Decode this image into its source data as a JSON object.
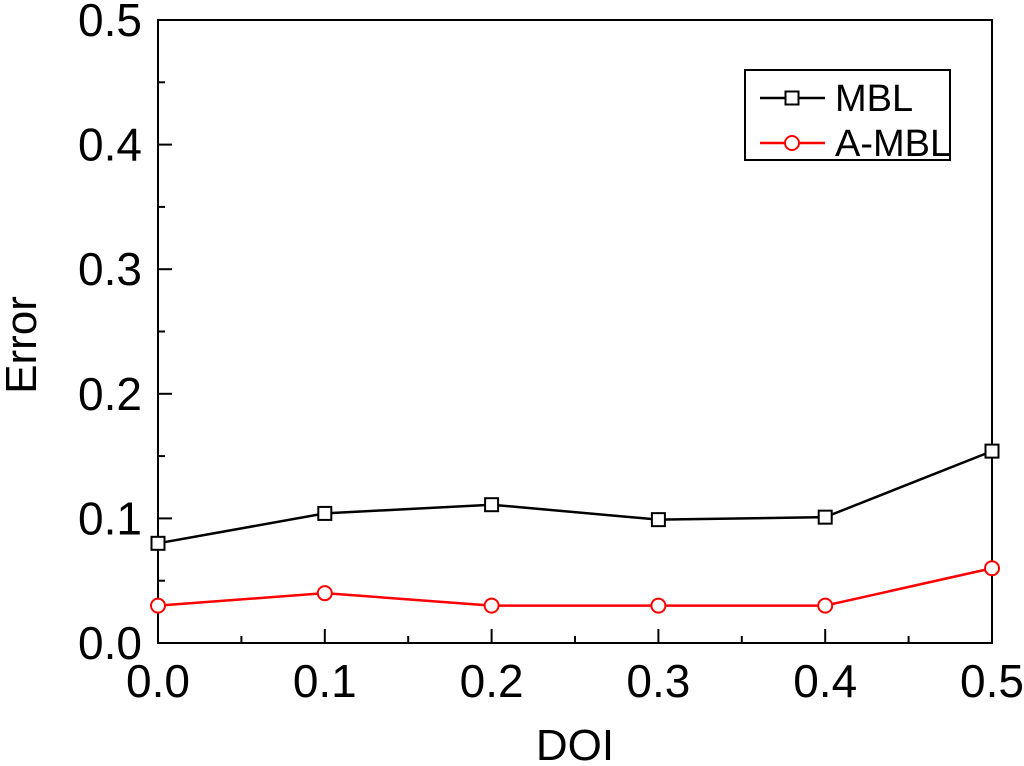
{
  "chart_data": {
    "type": "line",
    "title": "",
    "xlabel": "DOI",
    "ylabel": "Error",
    "xlim": [
      0.0,
      0.5
    ],
    "ylim": [
      0.0,
      0.5
    ],
    "x": [
      0.0,
      0.1,
      0.2,
      0.3,
      0.4,
      0.5
    ],
    "x_ticks": [
      "0.0",
      "0.1",
      "0.2",
      "0.3",
      "0.4",
      "0.5"
    ],
    "y_ticks": [
      "0.0",
      "0.1",
      "0.2",
      "0.3",
      "0.4",
      "0.5"
    ],
    "grid": false,
    "legend_position": "top-right",
    "series": [
      {
        "name": "MBL",
        "color": "#000000",
        "marker": "square",
        "values": [
          0.08,
          0.104,
          0.111,
          0.099,
          0.101,
          0.154
        ]
      },
      {
        "name": "A-MBL",
        "color": "#ff0000",
        "marker": "circle",
        "values": [
          0.03,
          0.04,
          0.03,
          0.03,
          0.03,
          0.06
        ]
      }
    ]
  }
}
